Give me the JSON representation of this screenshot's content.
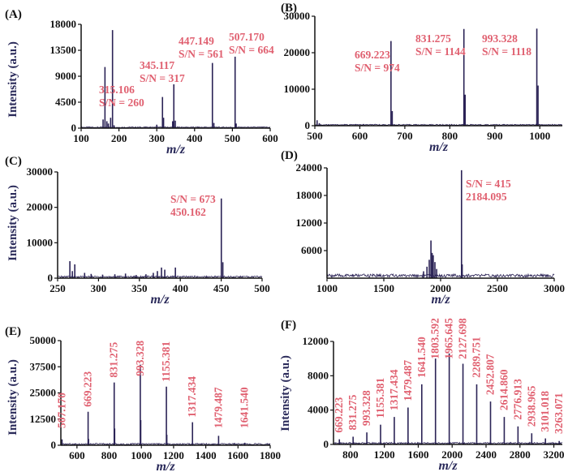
{
  "colors": {
    "spectrum": "#2b2356",
    "annotation": "#e06070",
    "axis": "#111111"
  },
  "chart_data": [
    {
      "id": "A",
      "panel_label": "(A)",
      "type": "line",
      "xlabel": "m/z",
      "ylabel": "Intensity (a.u.)",
      "xlim": [
        100,
        600
      ],
      "ylim": [
        0,
        18000
      ],
      "xticks": [
        100,
        200,
        300,
        400,
        500,
        600
      ],
      "yticks": [
        0,
        4500,
        9000,
        13500,
        18000
      ],
      "peaks": [
        [
          158,
          1500
        ],
        [
          163,
          10600
        ],
        [
          168,
          1200
        ],
        [
          172,
          800
        ],
        [
          178,
          1800
        ],
        [
          183,
          17000
        ],
        [
          187,
          500
        ],
        [
          300,
          600
        ],
        [
          315.106,
          5400
        ],
        [
          318,
          1800
        ],
        [
          342,
          1200
        ],
        [
          345.117,
          7600
        ],
        [
          349,
          1300
        ],
        [
          447.149,
          11300
        ],
        [
          451,
          900
        ],
        [
          507.17,
          12400
        ],
        [
          510,
          800
        ]
      ],
      "noise_amp": 180,
      "labels": [
        {
          "lines": [
            "315.106",
            "S/N = 260"
          ],
          "x": 315.106
        },
        {
          "lines": [
            "345.117",
            "S/N = 317"
          ],
          "x": 345.117
        },
        {
          "lines": [
            "447.149",
            "S/N = 561"
          ],
          "x": 447.149
        },
        {
          "lines": [
            "507.170",
            "S/N = 664"
          ],
          "x": 507.17
        }
      ]
    },
    {
      "id": "B",
      "panel_label": "(B)",
      "type": "line",
      "xlabel": "m/z",
      "ylabel": "",
      "xlim": [
        500,
        1050
      ],
      "ylim": [
        0,
        30000
      ],
      "xticks": [
        500,
        600,
        700,
        800,
        900,
        1000
      ],
      "yticks": [
        0,
        10000,
        20000,
        30000
      ],
      "peaks": [
        [
          505,
          1500
        ],
        [
          510,
          700
        ],
        [
          530,
          400
        ],
        [
          669.223,
          23200
        ],
        [
          672,
          4000
        ],
        [
          831.275,
          26500
        ],
        [
          834,
          8500
        ],
        [
          993.328,
          26600
        ],
        [
          996,
          11000
        ]
      ],
      "noise_amp": 300,
      "labels": [
        {
          "lines": [
            "669.223",
            "S/N = 974"
          ],
          "x": 669.223
        },
        {
          "lines": [
            "831.275",
            "S/N = 1144"
          ],
          "x": 831.275
        },
        {
          "lines": [
            "993.328",
            "S/N = 1118"
          ],
          "x": 993.328
        }
      ]
    },
    {
      "id": "C",
      "panel_label": "(C)",
      "type": "line",
      "xlabel": "m/z",
      "ylabel": "Intensity (a.u.)",
      "xlim": [
        250,
        500
      ],
      "ylim": [
        0,
        30000
      ],
      "xticks": [
        250,
        300,
        350,
        400,
        450,
        500
      ],
      "yticks": [
        0,
        10000,
        20000,
        30000
      ],
      "peaks": [
        [
          265,
          4800
        ],
        [
          268,
          2000
        ],
        [
          271,
          3900
        ],
        [
          283,
          1500
        ],
        [
          291,
          1200
        ],
        [
          305,
          1000
        ],
        [
          320,
          1100
        ],
        [
          333,
          1300
        ],
        [
          346,
          900
        ],
        [
          358,
          1100
        ],
        [
          367,
          1500
        ],
        [
          372,
          2000
        ],
        [
          377,
          3000
        ],
        [
          381,
          2400
        ],
        [
          394,
          3000
        ],
        [
          450.162,
          22500
        ],
        [
          452,
          4500
        ]
      ],
      "noise_amp": 500,
      "labels": [
        {
          "lines": [
            "S/N = 673",
            "450.162"
          ],
          "x": 450.162
        }
      ]
    },
    {
      "id": "D",
      "panel_label": "(D)",
      "type": "line",
      "xlabel": "m/z",
      "ylabel": "",
      "xlim": [
        1000,
        3000
      ],
      "ylim": [
        0,
        24000
      ],
      "xticks": [
        1000,
        1500,
        2000,
        2500,
        3000
      ],
      "yticks": [
        6000,
        12000,
        18000,
        24000
      ],
      "peaks": [
        [
          1850,
          1500
        ],
        [
          1880,
          2500
        ],
        [
          1900,
          4000
        ],
        [
          1915,
          8200
        ],
        [
          1925,
          5500
        ],
        [
          1935,
          5000
        ],
        [
          1950,
          3500
        ],
        [
          1965,
          2000
        ],
        [
          2184.095,
          23500
        ],
        [
          2190,
          3000
        ]
      ],
      "noise_amp": 700,
      "labels": [
        {
          "lines": [
            "S/N = 415",
            "2184.095"
          ],
          "x": 2184.095
        }
      ]
    },
    {
      "id": "E",
      "panel_label": "(E)",
      "type": "line",
      "xlabel": "m/z",
      "ylabel": "Intensity (a.u.)",
      "xlim": [
        500,
        1800
      ],
      "ylim": [
        0,
        50000
      ],
      "xticks": [
        600,
        800,
        1000,
        1200,
        1400,
        1600,
        1800
      ],
      "yticks": [
        0,
        12500,
        25000,
        37500,
        50000
      ],
      "peaks": [
        [
          507.17,
          2800
        ],
        [
          669.223,
          16000
        ],
        [
          672,
          3000
        ],
        [
          831.275,
          30000
        ],
        [
          834,
          8000
        ],
        [
          993.328,
          38500
        ],
        [
          996,
          12000
        ],
        [
          1155.381,
          28000
        ],
        [
          1158,
          5000
        ],
        [
          1317.434,
          11000
        ],
        [
          1479.487,
          4500
        ],
        [
          1641.54,
          1200
        ]
      ],
      "noise_amp": 700,
      "labels": [
        {
          "lines": [
            "507.170"
          ],
          "x": 507.17
        },
        {
          "lines": [
            "669.223"
          ],
          "x": 669.223
        },
        {
          "lines": [
            "831.275"
          ],
          "x": 831.275
        },
        {
          "lines": [
            "993.328"
          ],
          "x": 993.328
        },
        {
          "lines": [
            "1155.381"
          ],
          "x": 1155.381
        },
        {
          "lines": [
            "1317.434"
          ],
          "x": 1317.434
        },
        {
          "lines": [
            "1479.487"
          ],
          "x": 1479.487
        },
        {
          "lines": [
            "1641.540"
          ],
          "x": 1641.54
        }
      ]
    },
    {
      "id": "F",
      "panel_label": "(F)",
      "type": "line",
      "xlabel": "m/z",
      "ylabel": "Intensity (a.u.)",
      "xlim": [
        600,
        3300
      ],
      "ylim": [
        0,
        12000
      ],
      "xticks": [
        800,
        1200,
        1600,
        2000,
        2400,
        2800,
        3200
      ],
      "yticks": [
        0,
        4000,
        8000,
        12000
      ],
      "peaks": [
        [
          669.223,
          600
        ],
        [
          831.275,
          900
        ],
        [
          993.328,
          1400
        ],
        [
          1155.381,
          2300
        ],
        [
          1317.434,
          3200
        ],
        [
          1479.487,
          4300
        ],
        [
          1641.54,
          7000
        ],
        [
          1803.592,
          10000
        ],
        [
          1965.645,
          10600
        ],
        [
          2127.698,
          9400
        ],
        [
          2289.751,
          7000
        ],
        [
          2452.807,
          5000
        ],
        [
          2614.86,
          3200
        ],
        [
          2776.913,
          2100
        ],
        [
          2938.965,
          1300
        ],
        [
          3101.018,
          700
        ],
        [
          3263.071,
          400
        ]
      ],
      "noise_amp": 180,
      "labels": [
        {
          "lines": [
            "669.223"
          ],
          "x": 669.223
        },
        {
          "lines": [
            "831.275"
          ],
          "x": 831.275
        },
        {
          "lines": [
            "993.328"
          ],
          "x": 993.328
        },
        {
          "lines": [
            "1155.381"
          ],
          "x": 1155.381
        },
        {
          "lines": [
            "1317.434"
          ],
          "x": 1317.434
        },
        {
          "lines": [
            "1479.487"
          ],
          "x": 1479.487
        },
        {
          "lines": [
            "1641.540"
          ],
          "x": 1641.54
        },
        {
          "lines": [
            "1803.592"
          ],
          "x": 1803.592
        },
        {
          "lines": [
            "1965.645"
          ],
          "x": 1965.645
        },
        {
          "lines": [
            "2127.698"
          ],
          "x": 2127.698
        },
        {
          "lines": [
            "2289.751"
          ],
          "x": 2289.751
        },
        {
          "lines": [
            "2452.807"
          ],
          "x": 2452.807
        },
        {
          "lines": [
            "2614.860"
          ],
          "x": 2614.86
        },
        {
          "lines": [
            "2776.913"
          ],
          "x": 2776.913
        },
        {
          "lines": [
            "2938.965"
          ],
          "x": 2938.965
        },
        {
          "lines": [
            "3101.018"
          ],
          "x": 3101.018
        },
        {
          "lines": [
            "3263.071"
          ],
          "x": 3263.071
        }
      ]
    }
  ]
}
